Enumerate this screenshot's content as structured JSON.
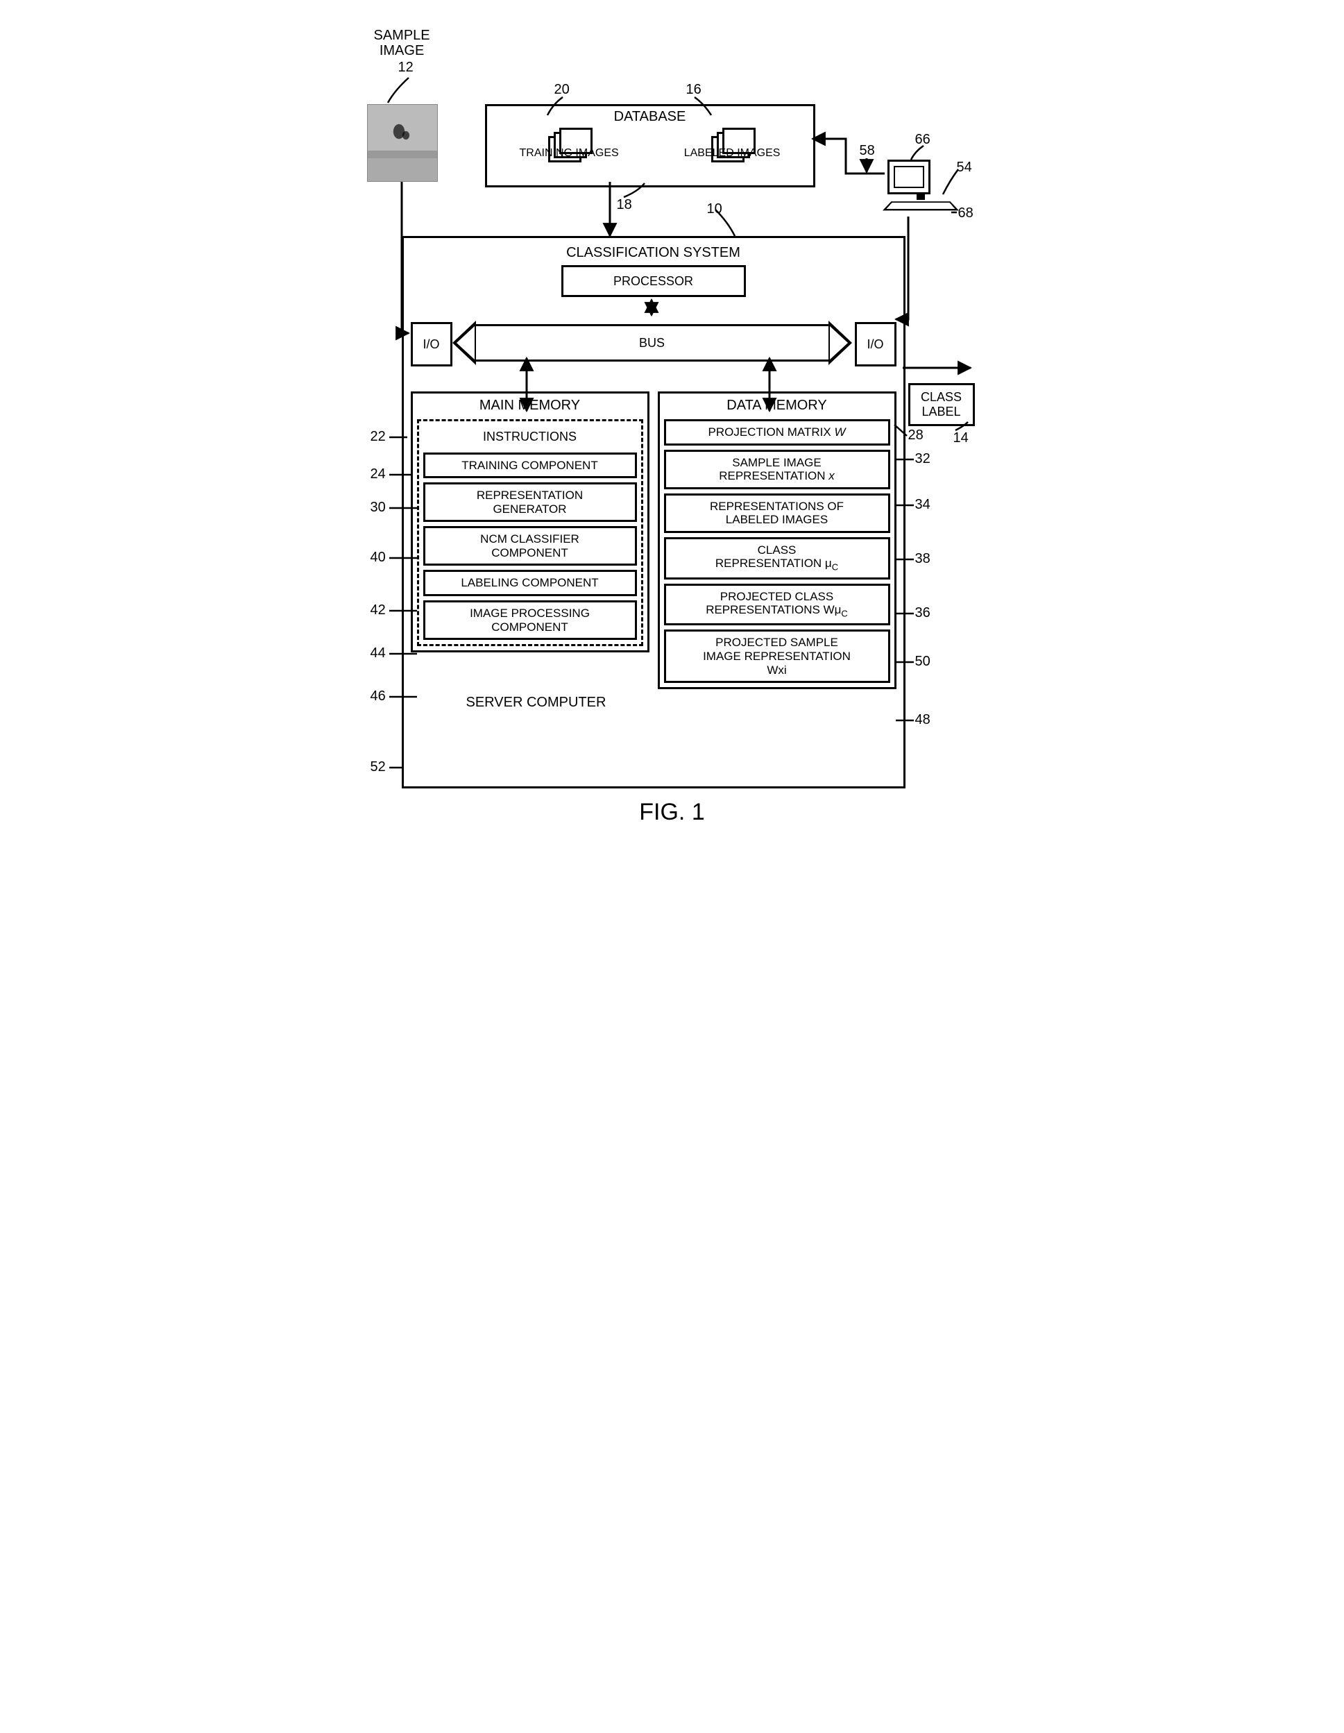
{
  "figure_title": "FIG. 1",
  "sample_image": {
    "label": "SAMPLE\nIMAGE",
    "ref": "12"
  },
  "database": {
    "title": "DATABASE",
    "ref": "18",
    "training": {
      "label": "TRAINING IMAGES",
      "ref": "20"
    },
    "labeled": {
      "label": "LABELED IMAGES",
      "ref": "16"
    }
  },
  "computer": {
    "refs": [
      "58",
      "66",
      "54",
      "68"
    ]
  },
  "system": {
    "title": "CLASSIFICATION SYSTEM",
    "ref": "10",
    "processor": "PROCESSOR",
    "bus": "BUS",
    "io_left": "I/O",
    "io_right": "I/O",
    "server_label": "SERVER COMPUTER",
    "server_ref": "52"
  },
  "class_label": {
    "text": "CLASS\nLABEL",
    "ref": "14"
  },
  "main_memory": {
    "title": "MAIN MEMORY",
    "ref": "22",
    "instructions": {
      "label": "INSTRUCTIONS",
      "ref": "24"
    },
    "items": [
      {
        "label": "TRAINING COMPONENT",
        "ref": "30"
      },
      {
        "label": "REPRESENTATION\nGENERATOR",
        "ref": "40"
      },
      {
        "label": "NCM CLASSIFIER\nCOMPONENT",
        "ref": "42"
      },
      {
        "label": "LABELING COMPONENT",
        "ref": "44"
      },
      {
        "label": "IMAGE PROCESSING\nCOMPONENT",
        "ref": "46"
      }
    ]
  },
  "data_memory": {
    "title": "DATA  MEMORY",
    "ref": "28",
    "items": [
      {
        "label": "PROJECTION MATRIX W",
        "ref": "32",
        "italic_last": true
      },
      {
        "label": "SAMPLE IMAGE\nREPRESENTATION x",
        "ref": "34",
        "italic_last": true
      },
      {
        "label": "REPRESENTATIONS OF\nLABELED IMAGES",
        "ref": "38"
      },
      {
        "label": "CLASS\nREPRESENTATION μ",
        "ref": "36",
        "sub": "C"
      },
      {
        "label": "PROJECTED CLASS\nREPRESENTATIONS Wμ",
        "ref": "50",
        "sub": "C"
      },
      {
        "label": "PROJECTED  SAMPLE\nIMAGE REPRESENTATION\nWxi",
        "ref": "48"
      }
    ]
  },
  "style": {
    "stroke": "#000000",
    "stroke_width": 3,
    "font": "Arial",
    "bg": "#ffffff"
  }
}
